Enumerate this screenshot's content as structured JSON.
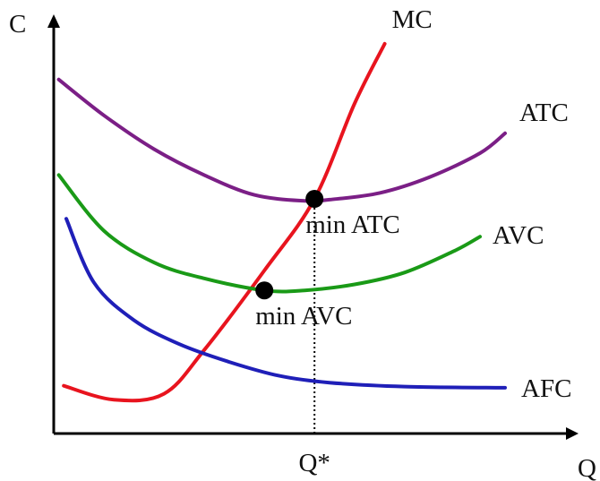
{
  "chart_data": {
    "type": "line",
    "title": "",
    "xlabel": "Q",
    "ylabel": "C",
    "grid": false,
    "x_ticks": [
      {
        "x": 5.2,
        "label": "Q*"
      }
    ],
    "xlim": [
      0,
      10
    ],
    "ylim": [
      0,
      10
    ],
    "series": [
      {
        "name": "MC",
        "color": "#e8141e",
        "x": [
          0.2,
          1.2,
          2.2,
          3.0,
          4.2,
          5.2,
          6.0,
          6.6
        ],
        "y": [
          1.2,
          0.85,
          1.0,
          2.1,
          4.1,
          5.9,
          8.3,
          9.8
        ]
      },
      {
        "name": "ATC",
        "color": "#7b1f86",
        "x": [
          0.1,
          1.0,
          2.0,
          3.0,
          4.0,
          5.0,
          5.5,
          6.5,
          7.5,
          8.5,
          9.0
        ],
        "y": [
          8.9,
          8.0,
          7.15,
          6.5,
          6.0,
          5.85,
          5.88,
          6.05,
          6.45,
          7.05,
          7.55
        ]
      },
      {
        "name": "AVC",
        "color": "#1a9a17",
        "x": [
          0.1,
          1.0,
          2.0,
          3.0,
          4.2,
          5.0,
          6.0,
          7.0,
          8.0,
          8.5
        ],
        "y": [
          6.5,
          5.1,
          4.3,
          3.9,
          3.6,
          3.6,
          3.75,
          4.05,
          4.6,
          4.95
        ]
      },
      {
        "name": "AFC",
        "color": "#1f1fb8",
        "x": [
          0.25,
          0.8,
          1.6,
          2.5,
          3.5,
          4.5,
          5.5,
          7.0,
          9.0
        ],
        "y": [
          5.4,
          3.8,
          2.85,
          2.25,
          1.8,
          1.45,
          1.28,
          1.18,
          1.15
        ]
      }
    ],
    "points": [
      {
        "label": "min ATC",
        "x": 5.2,
        "y": 5.9
      },
      {
        "label": "min AVC",
        "x": 4.2,
        "y": 3.6
      }
    ]
  }
}
